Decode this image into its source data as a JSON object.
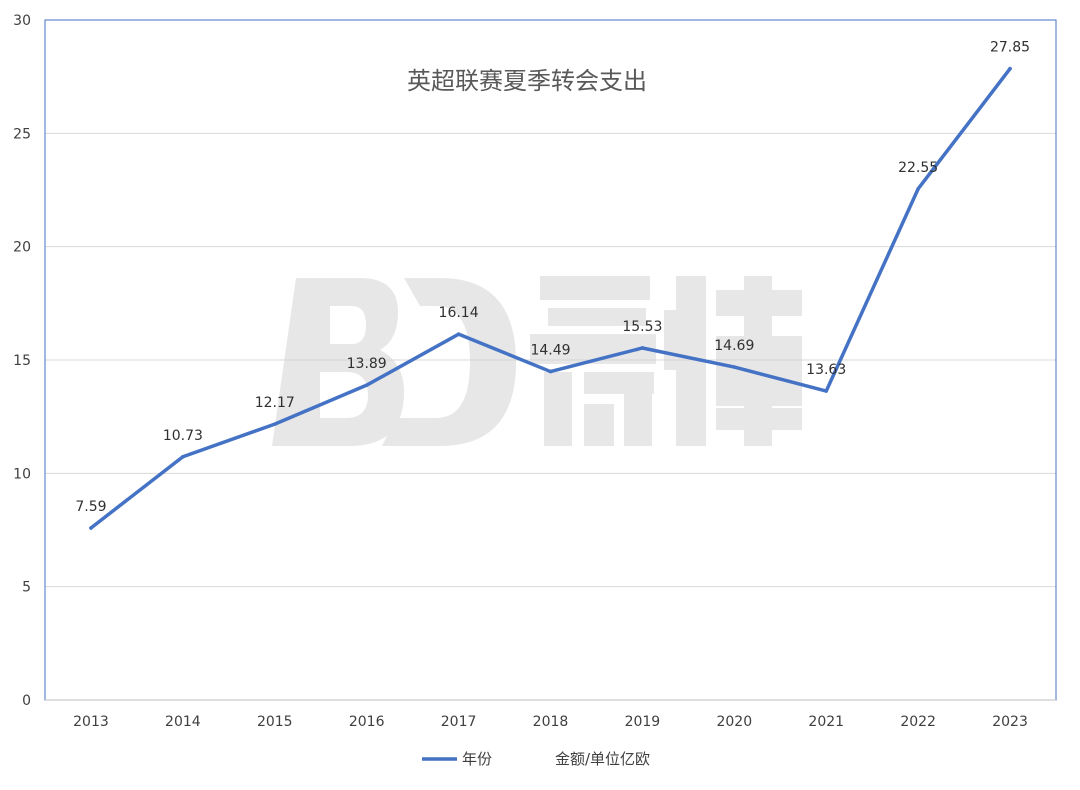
{
  "chart_data": {
    "type": "line",
    "title": "英超联赛夏季转会支出",
    "xlabel": "",
    "ylabel": "",
    "categories": [
      "2013",
      "2014",
      "2015",
      "2016",
      "2017",
      "2018",
      "2019",
      "2020",
      "2021",
      "2022",
      "2023"
    ],
    "series": [
      {
        "name": "年份",
        "values": [
          7.59,
          10.73,
          12.17,
          13.89,
          16.14,
          14.49,
          15.53,
          14.69,
          13.63,
          22.55,
          27.85
        ],
        "color": "#4472c4"
      }
    ],
    "secondary_legend_text": "金额/单位亿欧",
    "ylim": [
      0,
      30
    ],
    "yticks": [
      0,
      5,
      10,
      15,
      20,
      25,
      30
    ],
    "grid": true,
    "legend_position": "bottom",
    "watermark_text": "BD 氪体",
    "colors": {
      "line": "#4472c4",
      "grid": "#d9d9d9",
      "axis": "#bfbfbf",
      "plot_border": "#4472c4"
    }
  }
}
